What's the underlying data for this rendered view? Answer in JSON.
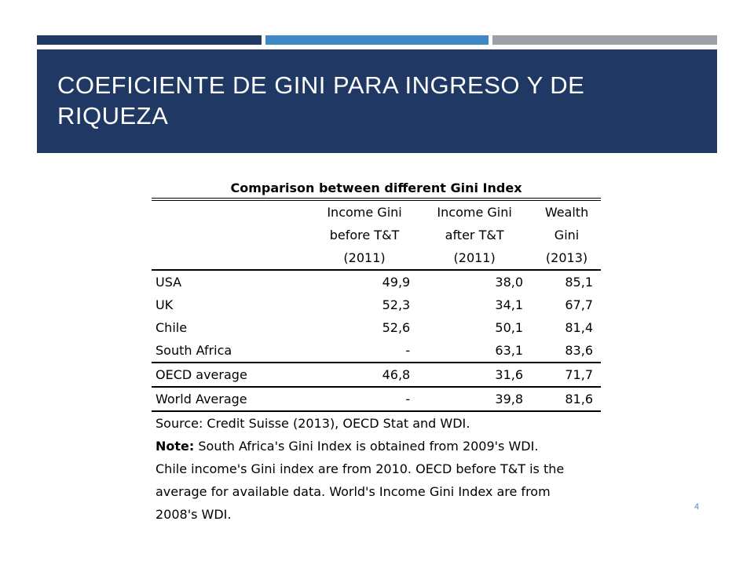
{
  "theme": {
    "dark_blue": "#1f3864",
    "mid_blue": "#3f88c5",
    "gray": "#9aa0a6",
    "page_number_color": "#4a89c0"
  },
  "slide": {
    "title": "COEFICIENTE DE GINI PARA INGRESO Y DE RIQUEZA",
    "page_number": "4"
  },
  "table": {
    "caption": "Comparison between different Gini Index",
    "headers": [
      [
        "",
        "Income Gini",
        "Income Gini",
        "Wealth"
      ],
      [
        "",
        "before T&T",
        "after T&T",
        "Gini"
      ],
      [
        "",
        "(2011)",
        "(2011)",
        "(2013)"
      ]
    ],
    "rows": [
      [
        "USA",
        "49,9",
        "38,0",
        "85,1"
      ],
      [
        "UK",
        "52,3",
        "34,1",
        "67,7"
      ],
      [
        "Chile",
        "52,6",
        "50,1",
        "81,4"
      ],
      [
        "South Africa",
        "-",
        "63,1",
        "83,6"
      ],
      [
        "OECD average",
        "46,8",
        "31,6",
        "71,7"
      ],
      [
        "World Average",
        "-",
        "39,8",
        "81,6"
      ]
    ],
    "source": "Source: Credit Suisse (2013), OECD Stat and WDI.",
    "note_label": "Note:",
    "note_lines": [
      " South Africa's Gini Index is obtained from 2009's WDI.",
      "Chile income's Gini index are from 2010. OECD before T&T is the",
      "average for available data. World's Income Gini Index are from",
      "2008's WDI."
    ]
  }
}
